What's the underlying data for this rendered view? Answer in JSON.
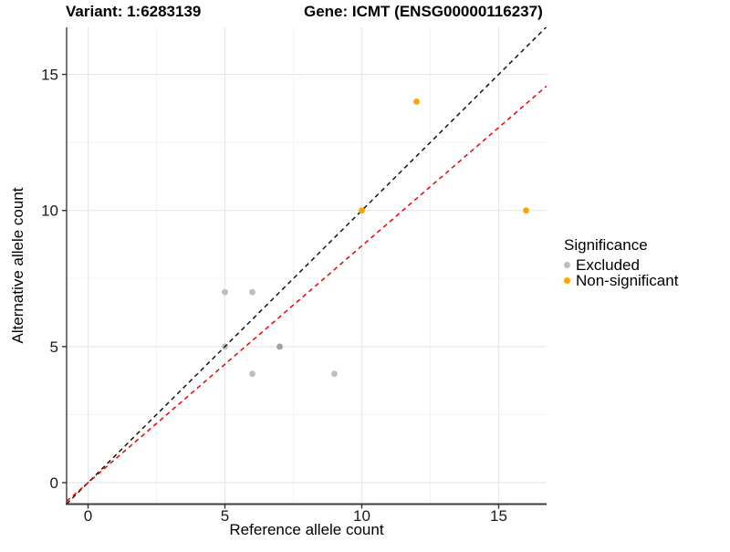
{
  "titles": {
    "variant": "Variant: 1:6283139",
    "gene": "Gene: ICMT (ENSG00000116237)"
  },
  "axes": {
    "x": {
      "label": "Reference allele count"
    },
    "y": {
      "label": "Alternative allele count"
    }
  },
  "legend": {
    "title": "Significance",
    "items": [
      {
        "label": "Excluded",
        "color": "#bebebe"
      },
      {
        "label": "Non-significant",
        "color": "#ffa500"
      }
    ]
  },
  "chart_data": {
    "type": "scatter",
    "title": "Variant: 1:6283139   Gene: ICMT (ENSG00000116237)",
    "xlabel": "Reference allele count",
    "ylabel": "Alternative allele count",
    "xlim": [
      -0.8,
      16.8
    ],
    "ylim": [
      -0.8,
      16.8
    ],
    "x_ticks": [
      0,
      5,
      10,
      15
    ],
    "y_ticks": [
      0,
      5,
      10,
      15
    ],
    "x_minor_ticks": [
      2.5,
      7.5,
      12.5
    ],
    "y_minor_ticks": [
      2.5,
      7.5,
      12.5
    ],
    "grid": true,
    "legend_position": "right",
    "series": [
      {
        "name": "Excluded",
        "color": "#bebebe",
        "points": [
          {
            "x": 5,
            "y": 7
          },
          {
            "x": 6,
            "y": 7
          },
          {
            "x": 5,
            "y": 5
          },
          {
            "x": 7,
            "y": 5,
            "color": "#a0a0a0"
          },
          {
            "x": 6,
            "y": 4
          },
          {
            "x": 9,
            "y": 4
          }
        ]
      },
      {
        "name": "Non-significant",
        "color": "#ffa500",
        "points": [
          {
            "x": 10,
            "y": 10
          },
          {
            "x": 12,
            "y": 14
          },
          {
            "x": 16,
            "y": 10
          }
        ]
      }
    ],
    "lines": [
      {
        "name": "identity-line",
        "slope": 1,
        "intercept": 0,
        "color": "#141414",
        "style": "dashed"
      },
      {
        "name": "trend-line",
        "slope": 0.87,
        "intercept": 0,
        "color": "#f20000",
        "style": "dashed"
      }
    ],
    "colors": {
      "major_grid": "#e7e7e7",
      "minor_grid": "#f3f3f3",
      "axis_line": "#3c3c3c",
      "tick_mark": "#333333"
    }
  }
}
